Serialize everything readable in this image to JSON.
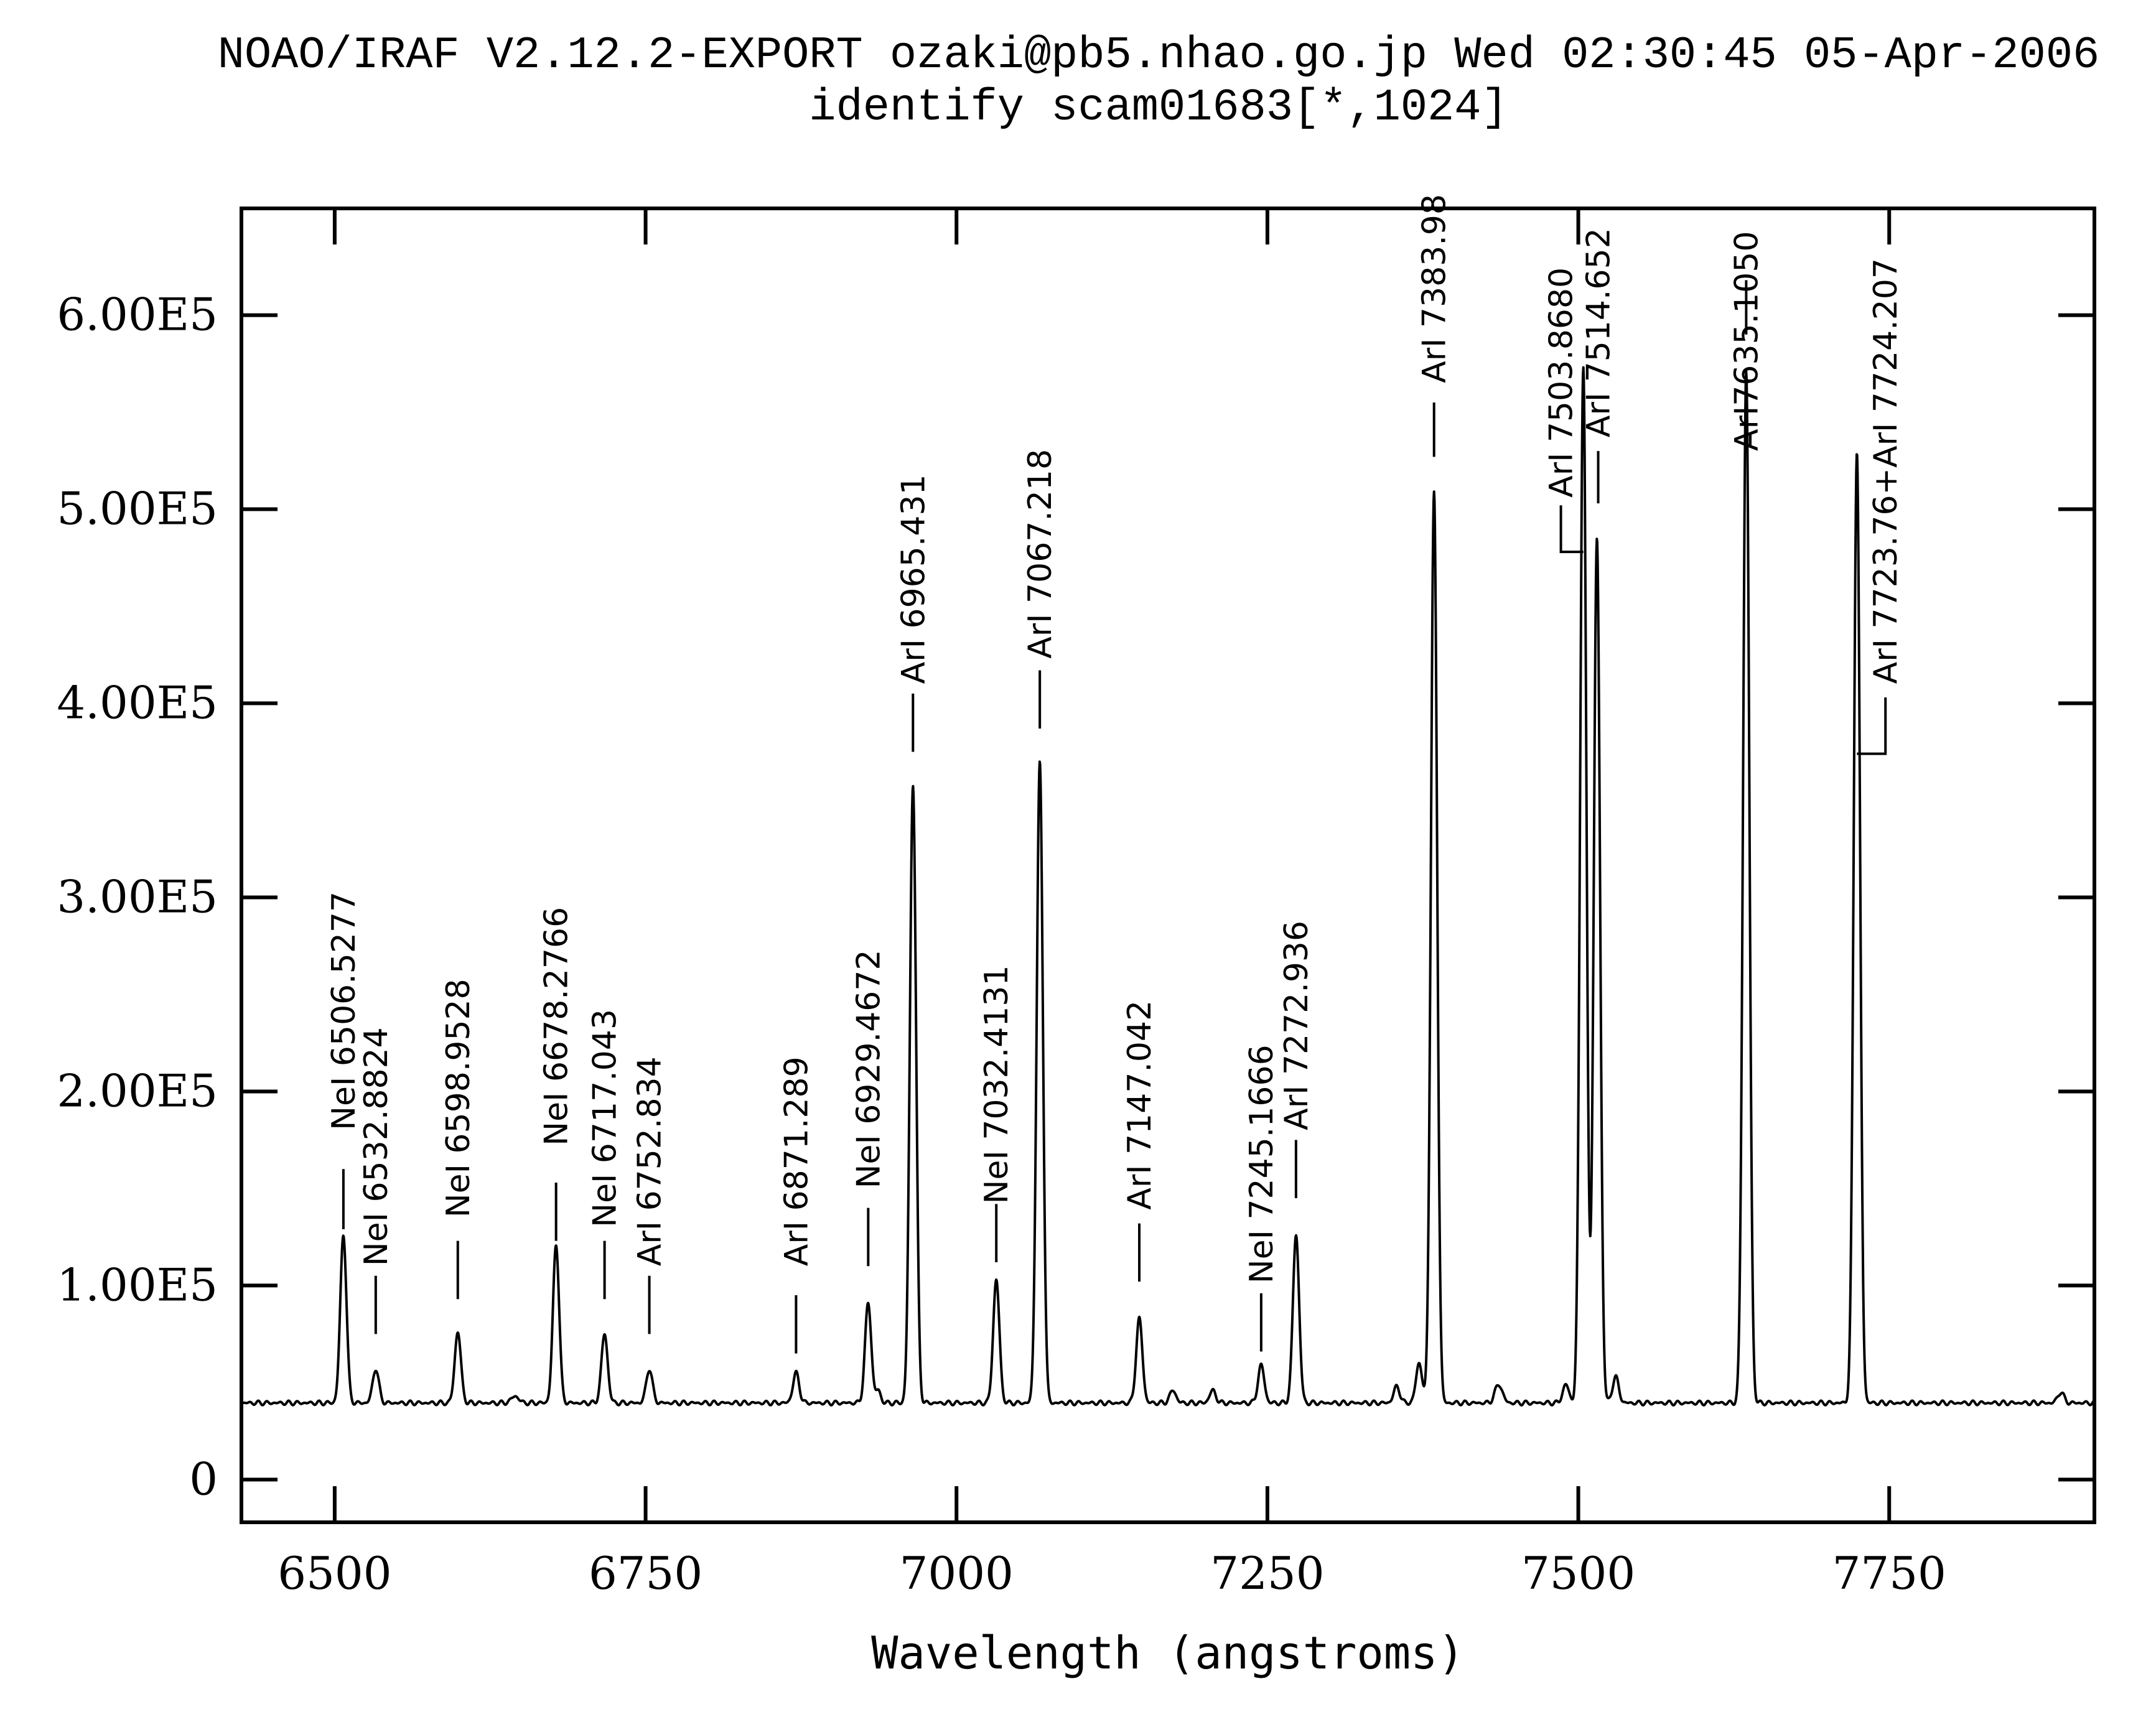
{
  "chart_data": {
    "type": "line",
    "title": "NOAO/IRAF V2.12.2-EXPORT ozaki@pb5.nhao.go.jp Wed 02:30:45 05-Apr-2006",
    "subtitle": "identify scam01683[*,1024]",
    "xlabel": "Wavelength (angstroms)",
    "ylabel": "",
    "xlim": [
      6425,
      7915
    ],
    "ylim": [
      -22000,
      655000
    ],
    "x_ticks": [
      6500,
      6750,
      7000,
      7250,
      7500,
      7750
    ],
    "x_tick_labels": [
      "6500",
      "6750",
      "7000",
      "7250",
      "7500",
      "7750"
    ],
    "y_ticks": [
      0,
      100000,
      200000,
      300000,
      400000,
      500000,
      600000
    ],
    "y_tick_labels": [
      "0",
      "1.00E5",
      "2.00E5",
      "3.00E5",
      "4.00E5",
      "5.00E5",
      "6.00E5"
    ],
    "grid": false,
    "baseline": 39500,
    "series": [
      {
        "name": "",
        "peaks": [
          {
            "x": 6507,
            "y": 126000,
            "w": 2.5
          },
          {
            "x": 6533,
            "y": 57000,
            "w": 2.5
          },
          {
            "x": 6599,
            "y": 76000,
            "w": 2.5
          },
          {
            "x": 6645,
            "y": 43000,
            "w": 3
          },
          {
            "x": 6678,
            "y": 121000,
            "w": 2.5
          },
          {
            "x": 6717,
            "y": 75000,
            "w": 2.5
          },
          {
            "x": 6753,
            "y": 57000,
            "w": 2.5
          },
          {
            "x": 6871,
            "y": 55000,
            "w": 2.5
          },
          {
            "x": 6929,
            "y": 91000,
            "w": 2.5
          },
          {
            "x": 6937,
            "y": 46000,
            "w": 2
          },
          {
            "x": 6965,
            "y": 358000,
            "w": 2.5
          },
          {
            "x": 7032,
            "y": 103000,
            "w": 2.5
          },
          {
            "x": 7067,
            "y": 369000,
            "w": 2.5
          },
          {
            "x": 7147,
            "y": 83000,
            "w": 2.5
          },
          {
            "x": 7174,
            "y": 46000,
            "w": 2.5
          },
          {
            "x": 7206,
            "y": 46000,
            "w": 2.5
          },
          {
            "x": 7245,
            "y": 59000,
            "w": 2.5
          },
          {
            "x": 7273,
            "y": 126000,
            "w": 2.5
          },
          {
            "x": 7354,
            "y": 48000,
            "w": 2.5
          },
          {
            "x": 7372,
            "y": 60000,
            "w": 2.5
          },
          {
            "x": 7384,
            "y": 508000,
            "w": 2.5
          },
          {
            "x": 7436,
            "y": 49000,
            "w": 3
          },
          {
            "x": 7490,
            "y": 49000,
            "w": 2.5
          },
          {
            "x": 7504,
            "y": 574000,
            "w": 2.5
          },
          {
            "x": 7515,
            "y": 485000,
            "w": 2.5
          },
          {
            "x": 7530,
            "y": 53000,
            "w": 2.5
          },
          {
            "x": 7635,
            "y": 571000,
            "w": 2.5
          },
          {
            "x": 7724,
            "y": 530000,
            "w": 2.5
          },
          {
            "x": 7888,
            "y": 45000,
            "w": 2.5
          }
        ]
      }
    ],
    "line_ids": [
      {
        "label": "NeI 6506.5277",
        "x": 6507,
        "tick_y": [
          129000,
          160000
        ],
        "text_y": 180000,
        "jog_x": null
      },
      {
        "label": "NeI 6532.8824",
        "x": 6533,
        "tick_y": [
          75000,
          105000
        ],
        "text_y": 110000,
        "jog_x": null
      },
      {
        "label": "NeI 6598.9528",
        "x": 6599,
        "tick_y": [
          93000,
          123000
        ],
        "text_y": 135000,
        "jog_x": null
      },
      {
        "label": "NeI 6678.2766",
        "x": 6678,
        "tick_y": [
          123000,
          153000
        ],
        "text_y": 172000,
        "jog_x": null
      },
      {
        "label": "NeI 6717.043",
        "x": 6717,
        "tick_y": [
          93000,
          123000
        ],
        "text_y": 130000,
        "jog_x": null
      },
      {
        "label": "ArI 6752.834",
        "x": 6753,
        "tick_y": [
          75000,
          105000
        ],
        "text_y": 110000,
        "jog_x": null
      },
      {
        "label": "ArI 6871.289",
        "x": 6871,
        "tick_y": [
          65000,
          95000
        ],
        "text_y": 110000,
        "jog_x": null
      },
      {
        "label": "NeI 6929.4672",
        "x": 6929,
        "tick_y": [
          110000,
          140000
        ],
        "text_y": 150000,
        "jog_x": null
      },
      {
        "label": "ArI 6965.431",
        "x": 6965,
        "tick_y": [
          375000,
          405000
        ],
        "text_y": 410000,
        "jog_x": null
      },
      {
        "label": "NeI 7032.4131",
        "x": 7032,
        "tick_y": [
          112000,
          142000
        ],
        "text_y": 142000,
        "jog_x": null
      },
      {
        "label": "ArI 7067.218",
        "x": 7067,
        "tick_y": [
          387000,
          417000
        ],
        "text_y": 423000,
        "jog_x": null
      },
      {
        "label": "ArI 7147.042",
        "x": 7147,
        "tick_y": [
          102000,
          132000
        ],
        "text_y": 139000,
        "jog_x": null
      },
      {
        "label": "NeI 7245.1666",
        "x": 7245,
        "tick_y": [
          66000,
          96000
        ],
        "text_y": 101000,
        "jog_x": null
      },
      {
        "label": "ArI 7272.936",
        "x": 7273,
        "tick_y": [
          145000,
          175000
        ],
        "text_y": 180000,
        "jog_x": null
      },
      {
        "label": "ArI 7383.98",
        "x": 7384,
        "tick_y": [
          527000,
          555000
        ],
        "text_y": 565000,
        "jog_x": null
      },
      {
        "label": "ArI 7503.8680",
        "x": 7486,
        "tick_y": [
          478000,
          502000
        ],
        "text_y": 506000,
        "jog_x": 7504
      },
      {
        "label": "ArI 7514.652",
        "x": 7516,
        "tick_y": [
          503000,
          530000
        ],
        "text_y": 537000,
        "jog_x": null
      },
      {
        "label": "ArI7635.1050",
        "x": 7635,
        "tick_y": [
          590000,
          618000
        ],
        "text_y": 530000,
        "jog_x": null
      },
      {
        "label": "ArI 7723.76+ArI 7724.207",
        "x": 7747,
        "tick_y": [
          374000,
          403000
        ],
        "text_y": 410000,
        "jog_x": 7724
      }
    ]
  }
}
